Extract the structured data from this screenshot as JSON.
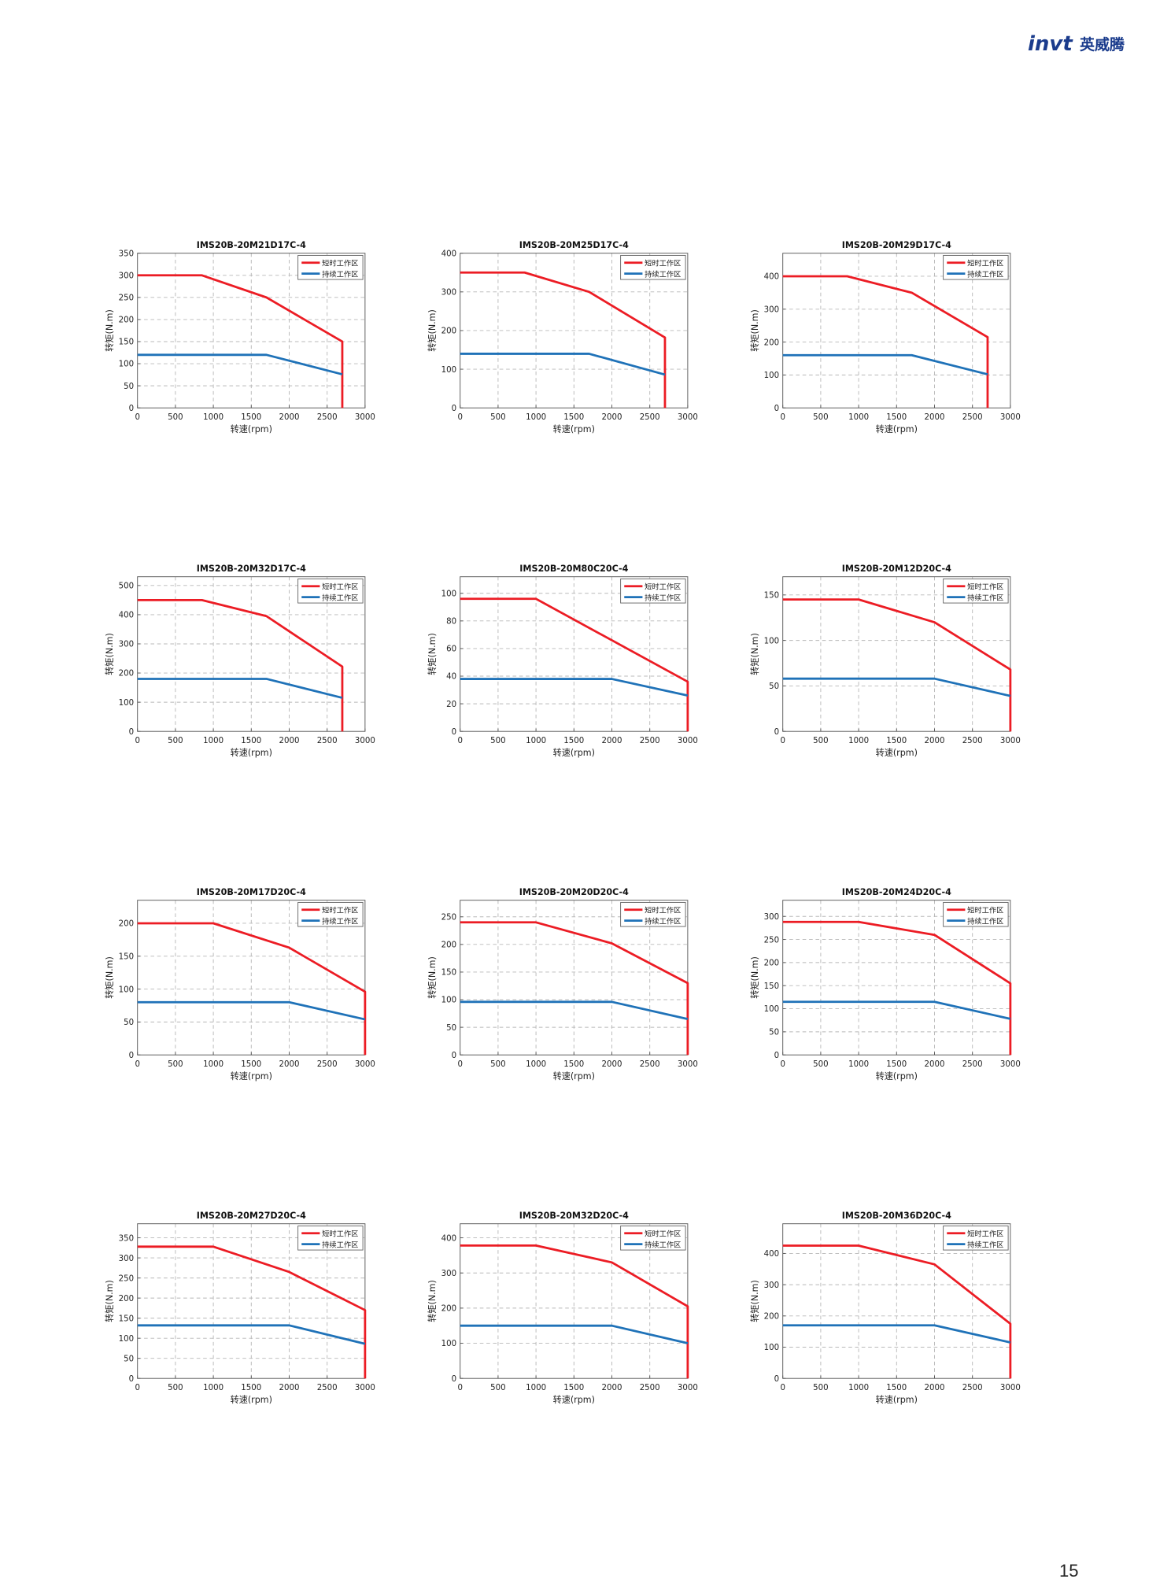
{
  "header": {
    "logo_text": "invt",
    "logo_cn": "英威腾"
  },
  "footer": {
    "page_number": "15"
  },
  "colors": {
    "peak": "#ec1c24",
    "continuous": "#1f72b8",
    "brand": "#1a3b8c"
  },
  "chart_data": [
    {
      "type": "line",
      "title": "IMS20B-20M21D17C-4",
      "xlabel": "转速(rpm)",
      "ylabel": "转矩(N.m)",
      "xlim": [
        0,
        3000
      ],
      "ylim": [
        0,
        350
      ],
      "xticks": [
        0,
        500,
        1000,
        1500,
        2000,
        2500,
        3000
      ],
      "yticks": [
        0,
        50,
        100,
        150,
        200,
        250,
        300,
        350
      ],
      "legend": "top-right",
      "series": [
        {
          "name": "短时工作区",
          "x": [
            0,
            850,
            1700,
            2700,
            2700
          ],
          "y": [
            300,
            300,
            250,
            150,
            0
          ]
        },
        {
          "name": "持续工作区",
          "x": [
            0,
            1700,
            2700
          ],
          "y": [
            120,
            120,
            76
          ]
        }
      ]
    },
    {
      "type": "line",
      "title": "IMS20B-20M25D17C-4",
      "xlabel": "转速(rpm)",
      "ylabel": "转矩(N.m)",
      "xlim": [
        0,
        3000
      ],
      "ylim": [
        0,
        400
      ],
      "xticks": [
        0,
        500,
        1000,
        1500,
        2000,
        2500,
        3000
      ],
      "yticks": [
        0,
        100,
        200,
        300,
        400
      ],
      "legend": "top-right",
      "series": [
        {
          "name": "短时工作区",
          "x": [
            0,
            850,
            1700,
            2700,
            2700
          ],
          "y": [
            350,
            350,
            300,
            182,
            0
          ]
        },
        {
          "name": "持续工作区",
          "x": [
            0,
            1700,
            2700
          ],
          "y": [
            140,
            140,
            86
          ]
        }
      ]
    },
    {
      "type": "line",
      "title": "IMS20B-20M29D17C-4",
      "xlabel": "转速(rpm)",
      "ylabel": "转矩(N.m)",
      "xlim": [
        0,
        3000
      ],
      "ylim": [
        0,
        470
      ],
      "xticks": [
        0,
        500,
        1000,
        1500,
        2000,
        2500,
        3000
      ],
      "yticks": [
        0,
        100,
        200,
        300,
        400
      ],
      "legend": "top-right",
      "series": [
        {
          "name": "短时工作区",
          "x": [
            0,
            850,
            1700,
            2700,
            2700
          ],
          "y": [
            400,
            400,
            350,
            215,
            0
          ]
        },
        {
          "name": "持续工作区",
          "x": [
            0,
            1700,
            2700
          ],
          "y": [
            160,
            160,
            102
          ]
        }
      ]
    },
    {
      "type": "line",
      "title": "IMS20B-20M32D17C-4",
      "xlabel": "转速(rpm)",
      "ylabel": "转矩(N.m)",
      "xlim": [
        0,
        3000
      ],
      "ylim": [
        0,
        530
      ],
      "xticks": [
        0,
        500,
        1000,
        1500,
        2000,
        2500,
        3000
      ],
      "yticks": [
        0,
        100,
        200,
        300,
        400,
        500
      ],
      "legend": "top-right",
      "series": [
        {
          "name": "短时工作区",
          "x": [
            0,
            850,
            1700,
            2700,
            2700
          ],
          "y": [
            450,
            450,
            395,
            222,
            0
          ]
        },
        {
          "name": "持续工作区",
          "x": [
            0,
            1700,
            2700
          ],
          "y": [
            180,
            180,
            115
          ]
        }
      ]
    },
    {
      "type": "line",
      "title": "IMS20B-20M80C20C-4",
      "xlabel": "转速(rpm)",
      "ylabel": "转矩(N.m)",
      "xlim": [
        0,
        3000
      ],
      "ylim": [
        0,
        112
      ],
      "xticks": [
        0,
        500,
        1000,
        1500,
        2000,
        2500,
        3000
      ],
      "yticks": [
        0,
        20,
        40,
        60,
        80,
        100
      ],
      "legend": "top-right",
      "series": [
        {
          "name": "短时工作区",
          "x": [
            0,
            1000,
            3000,
            3000
          ],
          "y": [
            96,
            96,
            36,
            0
          ]
        },
        {
          "name": "持续工作区",
          "x": [
            0,
            2000,
            3000
          ],
          "y": [
            38,
            38,
            26
          ]
        }
      ]
    },
    {
      "type": "line",
      "title": "IMS20B-20M12D20C-4",
      "xlabel": "转速(rpm)",
      "ylabel": "转矩(N.m)",
      "xlim": [
        0,
        3000
      ],
      "ylim": [
        0,
        170
      ],
      "xticks": [
        0,
        500,
        1000,
        1500,
        2000,
        2500,
        3000
      ],
      "yticks": [
        0,
        50,
        100,
        150
      ],
      "legend": "top-right",
      "series": [
        {
          "name": "短时工作区",
          "x": [
            0,
            1000,
            2000,
            3000,
            3000
          ],
          "y": [
            145,
            145,
            120,
            68,
            0
          ]
        },
        {
          "name": "持续工作区",
          "x": [
            0,
            2000,
            3000
          ],
          "y": [
            58,
            58,
            39
          ]
        }
      ]
    },
    {
      "type": "line",
      "title": "IMS20B-20M17D20C-4",
      "xlabel": "转速(rpm)",
      "ylabel": "转矩(N.m)",
      "xlim": [
        0,
        3000
      ],
      "ylim": [
        0,
        235
      ],
      "xticks": [
        0,
        500,
        1000,
        1500,
        2000,
        2500,
        3000
      ],
      "yticks": [
        0,
        50,
        100,
        150,
        200
      ],
      "legend": "top-right",
      "series": [
        {
          "name": "短时工作区",
          "x": [
            0,
            1000,
            2000,
            3000,
            3000
          ],
          "y": [
            200,
            200,
            163,
            96,
            0
          ]
        },
        {
          "name": "持续工作区",
          "x": [
            0,
            2000,
            3000
          ],
          "y": [
            80,
            80,
            54
          ]
        }
      ]
    },
    {
      "type": "line",
      "title": "IMS20B-20M20D20C-4",
      "xlabel": "转速(rpm)",
      "ylabel": "转矩(N.m)",
      "xlim": [
        0,
        3000
      ],
      "ylim": [
        0,
        280
      ],
      "xticks": [
        0,
        500,
        1000,
        1500,
        2000,
        2500,
        3000
      ],
      "yticks": [
        0,
        50,
        100,
        150,
        200,
        250
      ],
      "legend": "top-right",
      "series": [
        {
          "name": "短时工作区",
          "x": [
            0,
            1000,
            2000,
            3000,
            3000
          ],
          "y": [
            240,
            240,
            202,
            130,
            0
          ]
        },
        {
          "name": "持续工作区",
          "x": [
            0,
            2000,
            3000
          ],
          "y": [
            96,
            96,
            65
          ]
        }
      ]
    },
    {
      "type": "line",
      "title": "IMS20B-20M24D20C-4",
      "xlabel": "转速(rpm)",
      "ylabel": "转矩(N.m)",
      "xlim": [
        0,
        3000
      ],
      "ylim": [
        0,
        335
      ],
      "xticks": [
        0,
        500,
        1000,
        1500,
        2000,
        2500,
        3000
      ],
      "yticks": [
        0,
        50,
        100,
        150,
        200,
        250,
        300
      ],
      "legend": "top-right",
      "series": [
        {
          "name": "短时工作区",
          "x": [
            0,
            1000,
            2000,
            3000,
            3000
          ],
          "y": [
            288,
            288,
            260,
            155,
            0
          ]
        },
        {
          "name": "持续工作区",
          "x": [
            0,
            2000,
            3000
          ],
          "y": [
            115,
            115,
            78
          ]
        }
      ]
    },
    {
      "type": "line",
      "title": "IMS20B-20M27D20C-4",
      "xlabel": "转速(rpm)",
      "ylabel": "转矩(N.m)",
      "xlim": [
        0,
        3000
      ],
      "ylim": [
        0,
        385
      ],
      "xticks": [
        0,
        500,
        1000,
        1500,
        2000,
        2500,
        3000
      ],
      "yticks": [
        0,
        50,
        100,
        150,
        200,
        250,
        300,
        350
      ],
      "legend": "top-right",
      "series": [
        {
          "name": "短时工作区",
          "x": [
            0,
            1000,
            2000,
            3000,
            3000
          ],
          "y": [
            328,
            328,
            265,
            170,
            0
          ]
        },
        {
          "name": "持续工作区",
          "x": [
            0,
            2000,
            3000
          ],
          "y": [
            132,
            132,
            86
          ]
        }
      ]
    },
    {
      "type": "line",
      "title": "IMS20B-20M32D20C-4",
      "xlabel": "转速(rpm)",
      "ylabel": "转矩(N.m)",
      "xlim": [
        0,
        3000
      ],
      "ylim": [
        0,
        440
      ],
      "xticks": [
        0,
        500,
        1000,
        1500,
        2000,
        2500,
        3000
      ],
      "yticks": [
        0,
        100,
        200,
        300,
        400
      ],
      "legend": "top-right",
      "series": [
        {
          "name": "短时工作区",
          "x": [
            0,
            1000,
            2000,
            3000,
            3000
          ],
          "y": [
            378,
            378,
            330,
            205,
            0
          ]
        },
        {
          "name": "持续工作区",
          "x": [
            0,
            2000,
            3000
          ],
          "y": [
            150,
            150,
            100
          ]
        }
      ]
    },
    {
      "type": "line",
      "title": "IMS20B-20M36D20C-4",
      "xlabel": "转速(rpm)",
      "ylabel": "转矩(N.m)",
      "xlim": [
        0,
        3000
      ],
      "ylim": [
        0,
        495
      ],
      "xticks": [
        0,
        500,
        1000,
        1500,
        2000,
        2500,
        3000
      ],
      "yticks": [
        0,
        100,
        200,
        300,
        400
      ],
      "legend": "top-right",
      "series": [
        {
          "name": "短时工作区",
          "x": [
            0,
            1000,
            2000,
            3000,
            3000
          ],
          "y": [
            425,
            425,
            365,
            175,
            0
          ]
        },
        {
          "name": "持续工作区",
          "x": [
            0,
            2000,
            3000
          ],
          "y": [
            170,
            170,
            115
          ]
        }
      ]
    }
  ]
}
